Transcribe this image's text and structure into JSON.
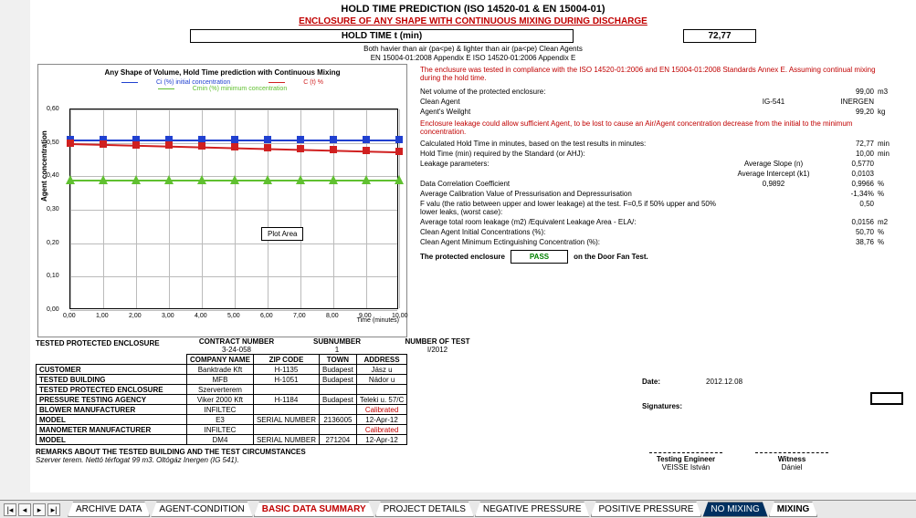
{
  "titles": {
    "t1": "HOLD TIME PREDICTION (ISO 14520-01 & EN 15004-01)",
    "t2": "ENCLOSURE OF ANY SHAPE WITH CONTINUOUS MIXING DURING DISCHARGE",
    "hold_label": "HOLD TIME t (min)",
    "hold_value": "72,77",
    "sub_note": "Both havier than air (pa<pe) & lighter than air (pa<pe) Clean Agents",
    "appendix": "EN 15004-01:2008 Appendix E   ISO 14520-01:2006 Appendix E"
  },
  "chart": {
    "title": "Any Shape of Volume, Hold Time prediction with Continuous Mixing",
    "legend": {
      "a": "Ci (%) initial concentration",
      "b": "C (t) %",
      "c": "Cmin (%) minimum concentration"
    },
    "colors": {
      "blue": "#2040d0",
      "red": "#d02020",
      "green": "#60c030"
    },
    "yticks": [
      "0,00",
      "0,10",
      "0,20",
      "0,30",
      "0,40",
      "0,50",
      "0,60"
    ],
    "xticks": [
      "0,00",
      "1,00",
      "2,00",
      "3,00",
      "4,00",
      "5,00",
      "6,00",
      "7,00",
      "8,00",
      "9,00",
      "10,00"
    ],
    "xlabel": "Time (minutes)",
    "ylabel": "Agent concentration",
    "blue_y": 0.51,
    "red_y_start": 0.5,
    "red_y_end": 0.475,
    "green_y": 0.39,
    "plot_area_label": "Plot Area"
  },
  "right": {
    "note": "The enclusure was tested in compliance with the ISO 14520-01:2006 and EN 15004-01:2008 Standards Annex E. Assuming continual mixing during the hold time.",
    "rows": [
      {
        "lab": "Net volume of the protected enclosure:",
        "mid": "",
        "val": "99,00",
        "unit": "m3"
      },
      {
        "lab": "Clean Agent",
        "mid": "IG-541",
        "val": "INERGEN",
        "unit": ""
      },
      {
        "lab": "Agent's Weilght",
        "mid": "",
        "val": "99,20",
        "unit": "kg"
      }
    ],
    "leak_note": "Enclosure leakage could allow sufficient Agent, to be lost to cause an Air/Agent concentration decrease from the initial to the minimum concentration.",
    "rows2": [
      {
        "lab": "Calculated Hold Time in minutes, based on the test results in minutes:",
        "mid": "",
        "val": "72,77",
        "unit": "min"
      },
      {
        "lab": "Hold Time (min) required by the Standard (or AHJ):",
        "mid": "",
        "val": "10,00",
        "unit": "min"
      },
      {
        "lab": "Leakage parameters:",
        "mid": "Average Slope (n)",
        "val": "0,5770",
        "unit": ""
      },
      {
        "lab": "",
        "mid": "Average Intercept (k1)",
        "val": "0,0103",
        "unit": ""
      },
      {
        "lab": "Data Correlation Coefficient",
        "mid": "0,9892",
        "val": "0,9966",
        "unit": "%"
      },
      {
        "lab": "Average Calibration Value of Pressurisation and Depressurisation",
        "mid": "",
        "val": "-1,34%",
        "unit": "%"
      },
      {
        "lab": "F valu (the ratio between upper and lower leakage) at the test. F=0,5 if 50% upper and 50% lower leaks, (worst case):",
        "mid": "",
        "val": "0,50",
        "unit": ""
      },
      {
        "lab": "Average total room leakage (m2) /Equivalent Leakage Area - ELA/:",
        "mid": "",
        "val": "0,0156",
        "unit": "m2"
      },
      {
        "lab": "Clean Agent Initial Concentrations (%):",
        "mid": "",
        "val": "50,70",
        "unit": "%"
      },
      {
        "lab": "Clean Agent Minimum Ectinguishing Concentration (%):",
        "mid": "",
        "val": "38,76",
        "unit": "%"
      }
    ],
    "pass_label_pre": "The protected enclosure",
    "pass": "PASS",
    "pass_label_post": "on the Door Fan Test.",
    "date_lab": "Date:",
    "date_val": "2012.12.08",
    "sign_lab": "Signatures:",
    "sig1_t": "Testing Engineer",
    "sig1_n": "VEISSE István",
    "sig2_t": "Witness",
    "sig2_n": "Dániel"
  },
  "mid_headers": {
    "a": "CONTRACT NUMBER",
    "b": "SUBNUMBER",
    "c": "NUMBER OF TEST",
    "av": "3-24-058",
    "bv": "1",
    "cv": "I/2012"
  },
  "infolab": "TESTED PROTECTED ENCLOSURE",
  "tbl": {
    "headers": [
      "",
      "COMPANY NAME",
      "ZIP CODE",
      "TOWN",
      "ADDRESS"
    ],
    "rows": [
      [
        "CUSTOMER",
        "Banktrade Kft",
        "H-1135",
        "Budapest",
        "Jász u"
      ],
      [
        "TESTED BUILDING",
        "MFB",
        "H-1051",
        "Budapest",
        "Nádor u"
      ],
      [
        "TESTED PROTECTED ENCLOSURE",
        "Szerverterem",
        "",
        "",
        ""
      ],
      [
        "PRESSURE TESTING AGENCY",
        "Viker 2000 Kft",
        "H-1184",
        "Budapest",
        "Teleki u. 57/C"
      ],
      [
        "BLOWER MANUFACTURER",
        "INFILTEC",
        "",
        "",
        "Calibrated"
      ],
      [
        "MODEL",
        "E3",
        "SERIAL NUMBER",
        "2136005",
        "12-Apr-12"
      ],
      [
        "MANOMETER MANUFACTURER",
        "INFILTEC",
        "",
        "",
        "Calibrated"
      ],
      [
        "MODEL",
        "DM4",
        "SERIAL NUMBER",
        "271204",
        "12-Apr-12"
      ]
    ]
  },
  "remarks_lab": "REMARKS ABOUT THE TESTED BUILDING AND THE TEST CIRCUMSTANCES",
  "remarks_txt": "Szerver terem. Nettó térfogat 99 m3. Oltógáz Inergen (IG 541).",
  "tabs": {
    "list": [
      "ARCHIVE DATA",
      "AGENT-CONDITION",
      "BASIC DATA SUMMARY",
      "PROJECT DETAILS",
      "NEGATIVE PRESSURE",
      "POSITIVE PRESSURE",
      "NO MIXING",
      "MIXING"
    ]
  }
}
